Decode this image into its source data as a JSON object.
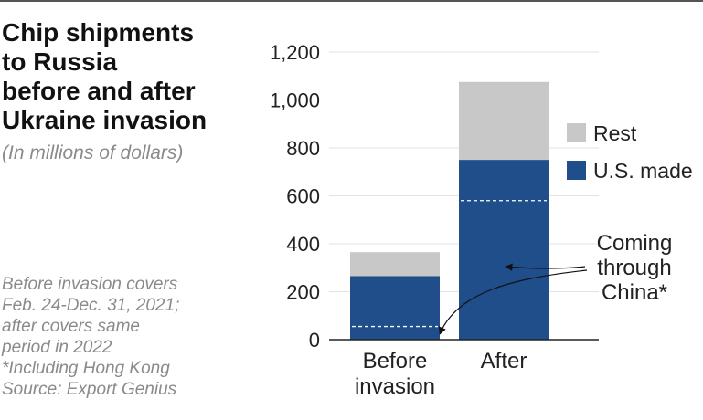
{
  "title_lines": [
    "Chip shipments",
    "to Russia",
    "before and after",
    "Ukraine invasion"
  ],
  "subtitle": "(In millions of dollars)",
  "notes": [
    "Before invasion covers",
    "Feb. 24-Dec. 31, 2021;",
    "after covers same",
    "period in 2022",
    "*Including Hong Kong",
    "Source: Export Genius"
  ],
  "colors": {
    "us_made": "#1f4e8a",
    "rest": "#c8c8c8",
    "china_line": "#ffffff",
    "axis": "#222222"
  },
  "chart_data": {
    "type": "bar",
    "stacked": true,
    "categories": [
      [
        "Before",
        "invasion"
      ],
      [
        "After"
      ]
    ],
    "series": [
      {
        "name": "U.S. made",
        "values": [
          265,
          750
        ]
      },
      {
        "name": "Rest",
        "values": [
          100,
          325
        ]
      }
    ],
    "china_values": [
      55,
      580
    ],
    "annotation": [
      "Coming",
      "through",
      "China*"
    ],
    "ylim": [
      0,
      1200
    ],
    "yticks": [
      "0",
      "200",
      "400",
      "600",
      "800",
      "1,000",
      "1,200"
    ],
    "ytick_values": [
      0,
      200,
      400,
      600,
      800,
      1000,
      1200
    ],
    "legend_position": "right",
    "grid": true
  }
}
